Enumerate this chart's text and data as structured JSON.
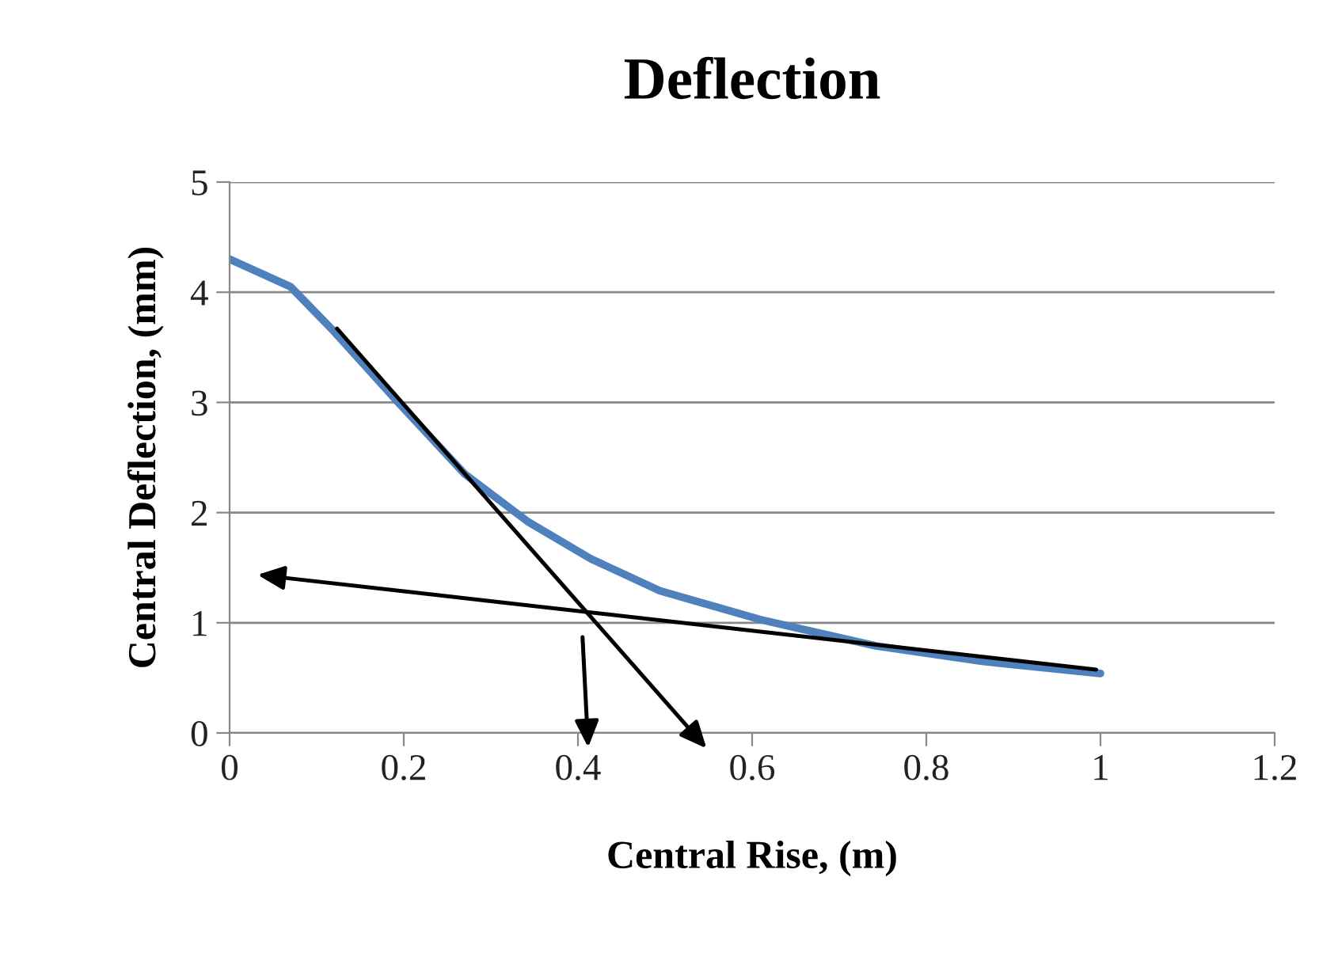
{
  "chart_data": {
    "type": "line",
    "title": "Deflection",
    "xlabel": "Central Rise, (m)",
    "ylabel": "Central Deflection, (mm)",
    "x": [
      0,
      0.07,
      0.118,
      0.197,
      0.27,
      0.342,
      0.415,
      0.494,
      0.609,
      0.742,
      0.864,
      1.0
    ],
    "series": [
      {
        "color": "#4f81bd",
        "values": [
          4.3,
          4.05,
          3.66,
          2.97,
          2.35,
          1.92,
          1.58,
          1.29,
          1.03,
          0.79,
          0.65,
          0.54
        ]
      }
    ],
    "xlim": [
      0,
      1.2
    ],
    "xticks": [
      0,
      0.2,
      0.4,
      0.6,
      0.8,
      1,
      1.2
    ],
    "ylim": [
      0,
      5
    ],
    "yticks": [
      0,
      1,
      2,
      3,
      4,
      5
    ],
    "grid": "y",
    "marker": "none",
    "line_style": "solid"
  }
}
